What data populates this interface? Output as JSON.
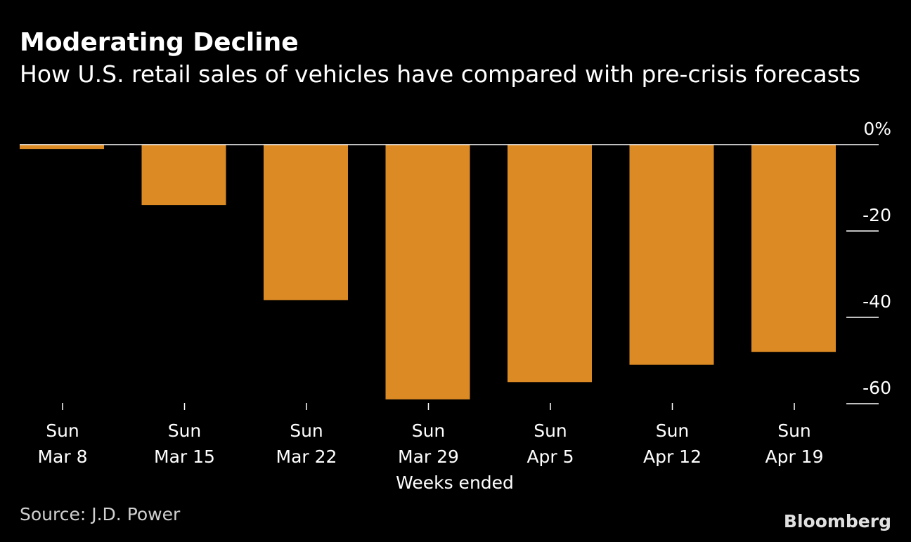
{
  "chart_data": {
    "type": "bar",
    "title": "Moderating Decline",
    "subtitle": "How U.S. retail sales of vehicles have compared with pre-crisis forecasts",
    "xlabel": "Weeks ended",
    "ylabel": "",
    "categories": [
      [
        "Sun",
        "Mar 8"
      ],
      [
        "Sun",
        "Mar 15"
      ],
      [
        "Sun",
        "Mar 22"
      ],
      [
        "Sun",
        "Mar 29"
      ],
      [
        "Sun",
        "Apr 5"
      ],
      [
        "Sun",
        "Apr 12"
      ],
      [
        "Sun",
        "Apr 19"
      ]
    ],
    "values": [
      -1,
      -14,
      -36,
      -59,
      -55,
      -51,
      -48
    ],
    "ylim": [
      -60,
      0
    ],
    "y_ticks": [
      {
        "value": 0,
        "label": "0%"
      },
      {
        "value": -20,
        "label": "-20"
      },
      {
        "value": -40,
        "label": "-40"
      },
      {
        "value": -60,
        "label": "-60"
      }
    ],
    "bar_color": "#dc8a24",
    "axis_position": "right",
    "grid": false
  },
  "source": "Source: J.D. Power",
  "brand": "Bloomberg"
}
